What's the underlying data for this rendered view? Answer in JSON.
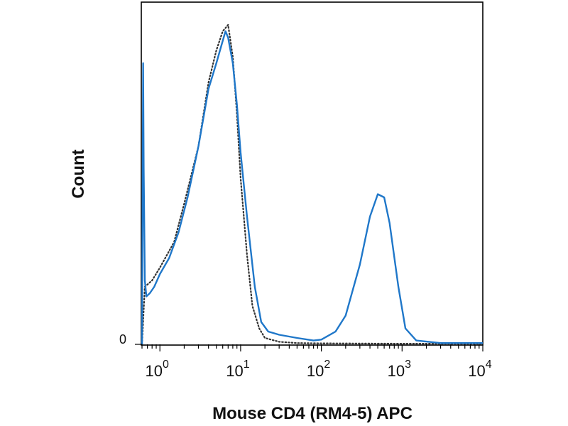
{
  "chart_data": {
    "type": "line",
    "title": "",
    "xlabel": "Mouse CD4 (RM4-5) APC",
    "ylabel": "Count",
    "xscale": "log",
    "xlim": [
      0.6,
      10000
    ],
    "ylim": [
      0,
      1
    ],
    "grid": false,
    "legend": "none",
    "x_ticks": [
      {
        "value": 1,
        "base": "10",
        "exp": "0"
      },
      {
        "value": 10,
        "base": "10",
        "exp": "1"
      },
      {
        "value": 100,
        "base": "10",
        "exp": "2"
      },
      {
        "value": 1000,
        "base": "10",
        "exp": "3"
      },
      {
        "value": 10000,
        "base": "10",
        "exp": "4"
      }
    ],
    "y_ticks": [
      {
        "value": 0,
        "label": "0"
      }
    ],
    "series": [
      {
        "color": "#1f77c9",
        "style": "solid",
        "points": [
          [
            0.6,
            0.0
          ],
          [
            0.62,
            0.88
          ],
          [
            0.63,
            0.55
          ],
          [
            0.65,
            0.2
          ],
          [
            0.68,
            0.15
          ],
          [
            0.75,
            0.16
          ],
          [
            0.85,
            0.18
          ],
          [
            1.0,
            0.22
          ],
          [
            1.3,
            0.27
          ],
          [
            1.7,
            0.35
          ],
          [
            2.2,
            0.46
          ],
          [
            3.0,
            0.62
          ],
          [
            4.0,
            0.8
          ],
          [
            5.0,
            0.88
          ],
          [
            6.0,
            0.95
          ],
          [
            6.5,
            0.98
          ],
          [
            7.0,
            0.96
          ],
          [
            8.0,
            0.88
          ],
          [
            9.0,
            0.75
          ],
          [
            10.0,
            0.6
          ],
          [
            12.0,
            0.4
          ],
          [
            15.0,
            0.18
          ],
          [
            18.0,
            0.07
          ],
          [
            22.0,
            0.04
          ],
          [
            30.0,
            0.03
          ],
          [
            50.0,
            0.02
          ],
          [
            80.0,
            0.012
          ],
          [
            100.0,
            0.015
          ],
          [
            150.0,
            0.04
          ],
          [
            200.0,
            0.09
          ],
          [
            300.0,
            0.25
          ],
          [
            400.0,
            0.4
          ],
          [
            500.0,
            0.47
          ],
          [
            600.0,
            0.46
          ],
          [
            700.0,
            0.38
          ],
          [
            900.0,
            0.18
          ],
          [
            1100.0,
            0.05
          ],
          [
            1500.0,
            0.012
          ],
          [
            3000.0,
            0.004
          ],
          [
            10000.0,
            0.004
          ]
        ]
      },
      {
        "color": "#333333",
        "style": "dotted",
        "points": [
          [
            0.6,
            0.0
          ],
          [
            0.65,
            0.18
          ],
          [
            0.8,
            0.2
          ],
          [
            1.0,
            0.24
          ],
          [
            1.5,
            0.32
          ],
          [
            2.0,
            0.44
          ],
          [
            3.0,
            0.62
          ],
          [
            4.0,
            0.82
          ],
          [
            5.0,
            0.92
          ],
          [
            6.0,
            0.98
          ],
          [
            7.0,
            1.0
          ],
          [
            8.0,
            0.9
          ],
          [
            9.0,
            0.72
          ],
          [
            10.0,
            0.52
          ],
          [
            12.0,
            0.28
          ],
          [
            14.0,
            0.12
          ],
          [
            17.0,
            0.05
          ],
          [
            20.0,
            0.02
          ],
          [
            30.0,
            0.008
          ],
          [
            50.0,
            0.004
          ],
          [
            100.0,
            0.003
          ],
          [
            1000.0,
            0.002
          ],
          [
            10000.0,
            0.002
          ]
        ]
      }
    ]
  }
}
